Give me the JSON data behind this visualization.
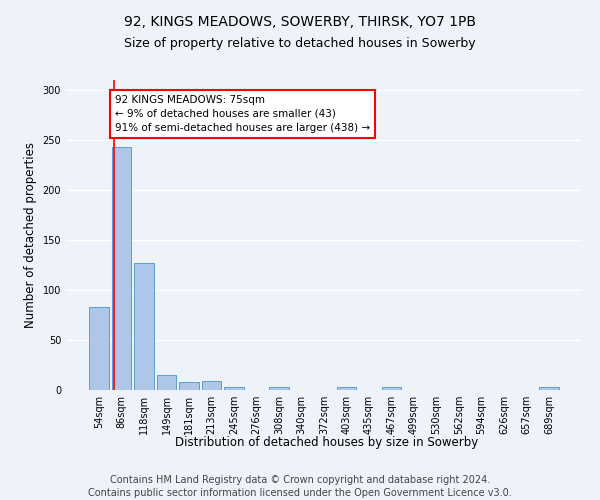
{
  "title_line1": "92, KINGS MEADOWS, SOWERBY, THIRSK, YO7 1PB",
  "title_line2": "Size of property relative to detached houses in Sowerby",
  "xlabel": "Distribution of detached houses by size in Sowerby",
  "ylabel": "Number of detached properties",
  "categories": [
    "54sqm",
    "86sqm",
    "118sqm",
    "149sqm",
    "181sqm",
    "213sqm",
    "245sqm",
    "276sqm",
    "308sqm",
    "340sqm",
    "372sqm",
    "403sqm",
    "435sqm",
    "467sqm",
    "499sqm",
    "530sqm",
    "562sqm",
    "594sqm",
    "626sqm",
    "657sqm",
    "689sqm"
  ],
  "values": [
    83,
    243,
    127,
    15,
    8,
    9,
    3,
    0,
    3,
    0,
    0,
    3,
    0,
    3,
    0,
    0,
    0,
    0,
    0,
    0,
    3
  ],
  "bar_color": "#aec6e8",
  "bar_edge_color": "#5a9fd4",
  "annotation_box_text": "92 KINGS MEADOWS: 75sqm\n← 9% of detached houses are smaller (43)\n91% of semi-detached houses are larger (438) →",
  "annotation_box_color": "white",
  "annotation_box_edge_color": "red",
  "vline_color": "red",
  "ylim": [
    0,
    310
  ],
  "yticks": [
    0,
    50,
    100,
    150,
    200,
    250,
    300
  ],
  "footer_line1": "Contains HM Land Registry data © Crown copyright and database right 2024.",
  "footer_line2": "Contains public sector information licensed under the Open Government Licence v3.0.",
  "background_color": "#eef2f9",
  "grid_color": "#ffffff",
  "title_fontsize": 10,
  "subtitle_fontsize": 9,
  "axis_label_fontsize": 8.5,
  "tick_fontsize": 7,
  "footer_fontsize": 7,
  "annotation_fontsize": 7.5
}
